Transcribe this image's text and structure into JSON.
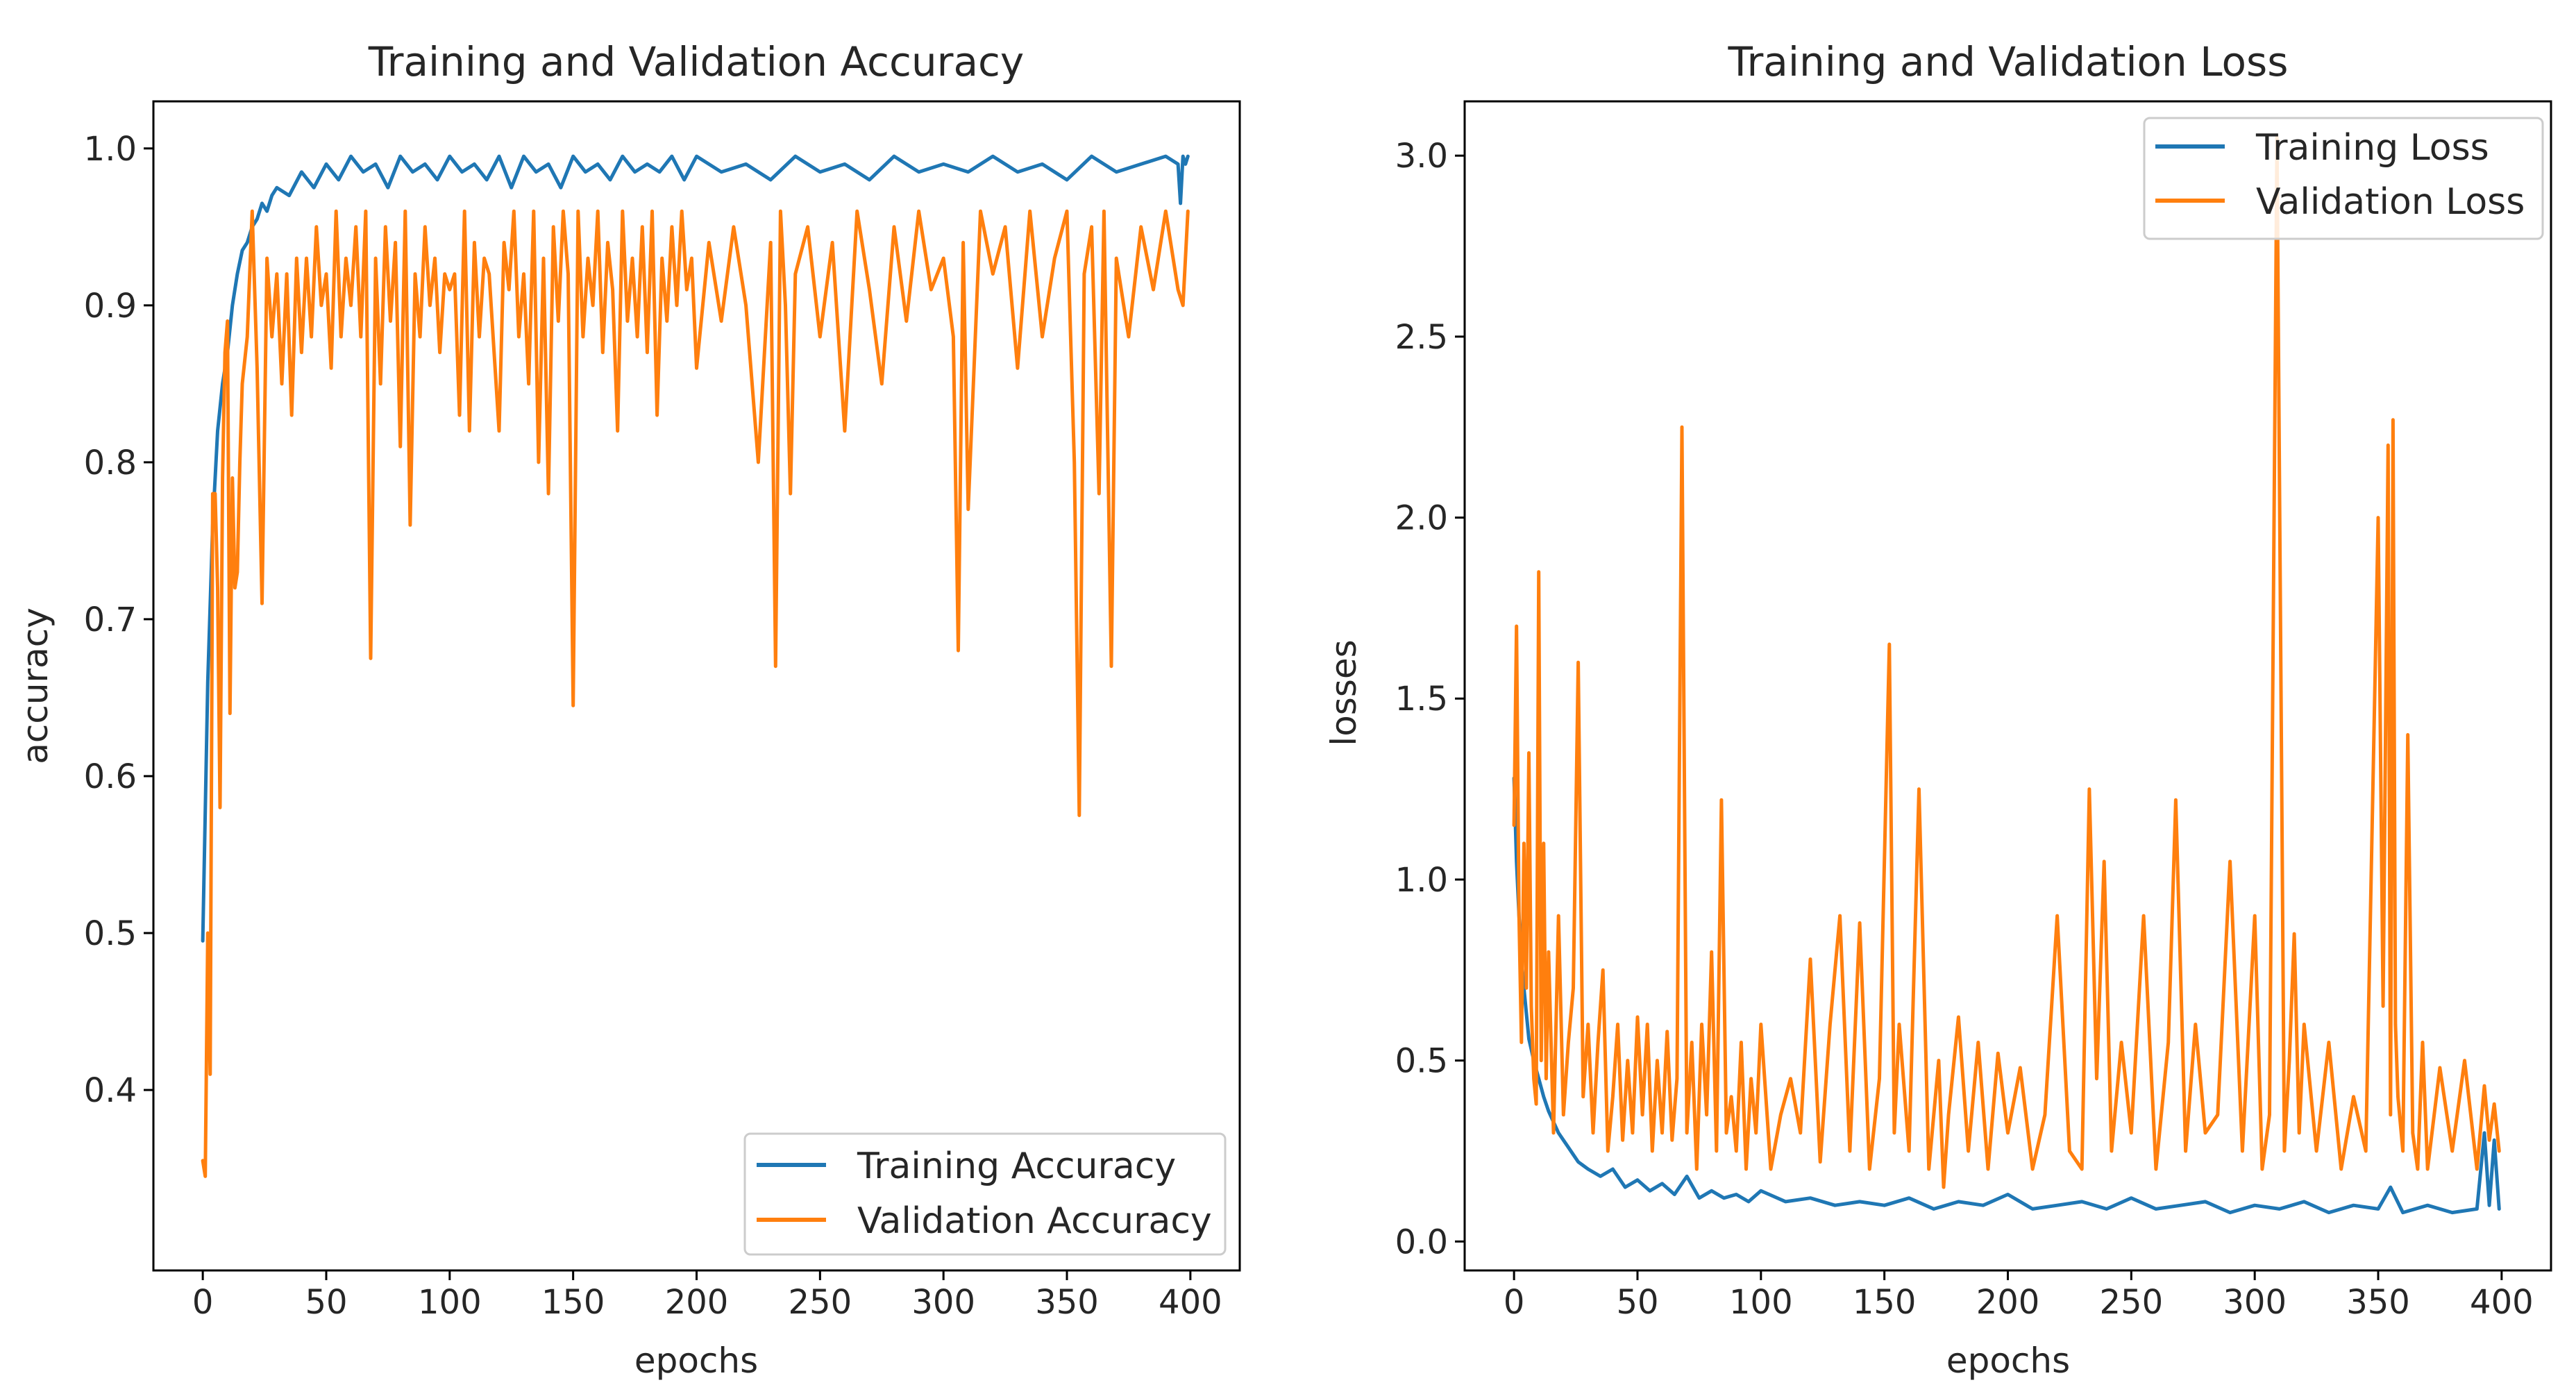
{
  "chart_data": [
    {
      "type": "line",
      "title": "Training and Validation Accuracy",
      "xlabel": "epochs",
      "ylabel": "accuracy",
      "xlim": [
        -20,
        420
      ],
      "ylim": [
        0.285,
        1.03
      ],
      "xticks": [
        0,
        50,
        100,
        150,
        200,
        250,
        300,
        350,
        400
      ],
      "xtick_labels": [
        "0",
        "50",
        "100",
        "150",
        "200",
        "250",
        "300",
        "350",
        "400"
      ],
      "yticks": [
        0.4,
        0.5,
        0.6,
        0.7,
        0.8,
        0.9,
        1.0
      ],
      "ytick_labels": [
        "0.4",
        "0.5",
        "0.6",
        "0.7",
        "0.8",
        "0.9",
        "1.0"
      ],
      "legend_position": "lower-right",
      "series": [
        {
          "name": "Training Accuracy",
          "color": "#1f77b4",
          "x": [
            0,
            2,
            4,
            6,
            8,
            10,
            12,
            14,
            16,
            18,
            20,
            22,
            24,
            26,
            28,
            30,
            35,
            40,
            45,
            50,
            55,
            60,
            65,
            70,
            75,
            80,
            85,
            90,
            95,
            100,
            105,
            110,
            115,
            120,
            125,
            130,
            135,
            140,
            145,
            150,
            155,
            160,
            165,
            170,
            175,
            180,
            185,
            190,
            195,
            200,
            210,
            220,
            230,
            240,
            250,
            260,
            270,
            280,
            290,
            300,
            310,
            320,
            330,
            340,
            350,
            360,
            370,
            380,
            390,
            395,
            396,
            397,
            398,
            399
          ],
          "y": [
            0.495,
            0.66,
            0.76,
            0.82,
            0.85,
            0.87,
            0.9,
            0.92,
            0.935,
            0.94,
            0.95,
            0.955,
            0.965,
            0.96,
            0.97,
            0.975,
            0.97,
            0.985,
            0.975,
            0.99,
            0.98,
            0.995,
            0.985,
            0.99,
            0.975,
            0.995,
            0.985,
            0.99,
            0.98,
            0.995,
            0.985,
            0.99,
            0.98,
            0.995,
            0.975,
            0.995,
            0.985,
            0.99,
            0.975,
            0.995,
            0.985,
            0.99,
            0.98,
            0.995,
            0.985,
            0.99,
            0.985,
            0.995,
            0.98,
            0.995,
            0.985,
            0.99,
            0.98,
            0.995,
            0.985,
            0.99,
            0.98,
            0.995,
            0.985,
            0.99,
            0.985,
            0.995,
            0.985,
            0.99,
            0.98,
            0.995,
            0.985,
            0.99,
            0.995,
            0.99,
            0.965,
            0.995,
            0.99,
            0.995
          ]
        },
        {
          "name": "Validation Accuracy",
          "color": "#ff7f0e",
          "x": [
            0,
            1,
            2,
            3,
            4,
            5,
            6,
            7,
            8,
            9,
            10,
            11,
            12,
            13,
            14,
            15,
            16,
            18,
            20,
            22,
            24,
            26,
            28,
            30,
            32,
            34,
            36,
            38,
            40,
            42,
            44,
            46,
            48,
            50,
            52,
            54,
            56,
            58,
            60,
            62,
            64,
            66,
            68,
            70,
            72,
            74,
            76,
            78,
            80,
            82,
            84,
            86,
            88,
            90,
            92,
            94,
            96,
            98,
            100,
            102,
            104,
            106,
            108,
            110,
            112,
            114,
            116,
            118,
            120,
            122,
            124,
            126,
            128,
            130,
            132,
            134,
            136,
            138,
            140,
            142,
            144,
            146,
            148,
            150,
            152,
            154,
            156,
            158,
            160,
            162,
            164,
            166,
            168,
            170,
            172,
            174,
            176,
            178,
            180,
            182,
            184,
            186,
            188,
            190,
            192,
            194,
            196,
            198,
            200,
            205,
            210,
            215,
            220,
            225,
            230,
            232,
            234,
            236,
            238,
            240,
            245,
            250,
            255,
            260,
            265,
            270,
            275,
            280,
            285,
            290,
            295,
            300,
            304,
            306,
            308,
            310,
            315,
            320,
            325,
            330,
            335,
            340,
            345,
            350,
            353,
            355,
            357,
            360,
            363,
            365,
            368,
            370,
            375,
            380,
            385,
            390,
            393,
            395,
            397,
            399
          ],
          "y": [
            0.355,
            0.345,
            0.5,
            0.41,
            0.78,
            0.78,
            0.72,
            0.58,
            0.79,
            0.87,
            0.89,
            0.64,
            0.79,
            0.72,
            0.73,
            0.8,
            0.85,
            0.88,
            0.96,
            0.86,
            0.71,
            0.93,
            0.88,
            0.92,
            0.85,
            0.92,
            0.83,
            0.93,
            0.87,
            0.93,
            0.88,
            0.95,
            0.9,
            0.92,
            0.86,
            0.96,
            0.88,
            0.93,
            0.9,
            0.95,
            0.88,
            0.96,
            0.675,
            0.93,
            0.85,
            0.95,
            0.89,
            0.94,
            0.81,
            0.96,
            0.76,
            0.92,
            0.88,
            0.95,
            0.9,
            0.93,
            0.87,
            0.92,
            0.91,
            0.92,
            0.83,
            0.96,
            0.82,
            0.94,
            0.88,
            0.93,
            0.92,
            0.87,
            0.82,
            0.94,
            0.91,
            0.96,
            0.88,
            0.92,
            0.85,
            0.96,
            0.8,
            0.93,
            0.78,
            0.95,
            0.89,
            0.96,
            0.92,
            0.645,
            0.96,
            0.88,
            0.93,
            0.9,
            0.96,
            0.87,
            0.94,
            0.91,
            0.82,
            0.96,
            0.89,
            0.93,
            0.88,
            0.95,
            0.87,
            0.96,
            0.83,
            0.93,
            0.89,
            0.95,
            0.9,
            0.96,
            0.91,
            0.93,
            0.86,
            0.94,
            0.89,
            0.95,
            0.9,
            0.8,
            0.94,
            0.67,
            0.96,
            0.9,
            0.78,
            0.92,
            0.95,
            0.88,
            0.94,
            0.82,
            0.96,
            0.91,
            0.85,
            0.95,
            0.89,
            0.96,
            0.91,
            0.93,
            0.88,
            0.68,
            0.94,
            0.77,
            0.96,
            0.92,
            0.95,
            0.86,
            0.96,
            0.88,
            0.93,
            0.96,
            0.8,
            0.575,
            0.92,
            0.95,
            0.78,
            0.96,
            0.67,
            0.93,
            0.88,
            0.95,
            0.91,
            0.96,
            0.93,
            0.91,
            0.9,
            0.96
          ]
        }
      ]
    },
    {
      "type": "line",
      "title": "Training and Validation Loss",
      "xlabel": "epochs",
      "ylabel": "losses",
      "xlim": [
        -20,
        420
      ],
      "ylim": [
        -0.08,
        3.15
      ],
      "xticks": [
        0,
        50,
        100,
        150,
        200,
        250,
        300,
        350,
        400
      ],
      "xtick_labels": [
        "0",
        "50",
        "100",
        "150",
        "200",
        "250",
        "300",
        "350",
        "400"
      ],
      "yticks": [
        0.0,
        0.5,
        1.0,
        1.5,
        2.0,
        2.5,
        3.0
      ],
      "ytick_labels": [
        "0.0",
        "0.5",
        "1.0",
        "1.5",
        "2.0",
        "2.5",
        "3.0"
      ],
      "legend_position": "upper-right",
      "series": [
        {
          "name": "Training Loss",
          "color": "#1f77b4",
          "x": [
            0,
            1,
            2,
            3,
            4,
            5,
            6,
            8,
            10,
            12,
            14,
            16,
            18,
            20,
            22,
            24,
            26,
            28,
            30,
            35,
            40,
            45,
            50,
            55,
            60,
            65,
            70,
            75,
            80,
            85,
            90,
            95,
            100,
            110,
            120,
            130,
            140,
            150,
            160,
            170,
            180,
            190,
            200,
            210,
            220,
            230,
            240,
            250,
            260,
            270,
            280,
            290,
            300,
            310,
            320,
            330,
            340,
            350,
            355,
            360,
            370,
            380,
            390,
            393,
            395,
            397,
            399
          ],
          "y": [
            1.28,
            1.05,
            0.9,
            0.78,
            0.7,
            0.63,
            0.56,
            0.5,
            0.45,
            0.4,
            0.36,
            0.33,
            0.3,
            0.28,
            0.26,
            0.24,
            0.22,
            0.21,
            0.2,
            0.18,
            0.2,
            0.15,
            0.17,
            0.14,
            0.16,
            0.13,
            0.18,
            0.12,
            0.14,
            0.12,
            0.13,
            0.11,
            0.14,
            0.11,
            0.12,
            0.1,
            0.11,
            0.1,
            0.12,
            0.09,
            0.11,
            0.1,
            0.13,
            0.09,
            0.1,
            0.11,
            0.09,
            0.12,
            0.09,
            0.1,
            0.11,
            0.08,
            0.1,
            0.09,
            0.11,
            0.08,
            0.1,
            0.09,
            0.15,
            0.08,
            0.1,
            0.08,
            0.09,
            0.3,
            0.1,
            0.28,
            0.09
          ]
        },
        {
          "name": "Validation Loss",
          "color": "#ff7f0e",
          "x": [
            0,
            1,
            2,
            3,
            4,
            5,
            6,
            7,
            8,
            9,
            10,
            11,
            12,
            13,
            14,
            16,
            18,
            20,
            22,
            24,
            26,
            28,
            30,
            32,
            34,
            36,
            38,
            40,
            42,
            44,
            46,
            48,
            50,
            52,
            54,
            56,
            58,
            60,
            62,
            64,
            66,
            68,
            70,
            72,
            74,
            76,
            78,
            80,
            82,
            84,
            86,
            88,
            90,
            92,
            94,
            96,
            98,
            100,
            104,
            108,
            112,
            116,
            120,
            124,
            128,
            132,
            136,
            140,
            144,
            148,
            152,
            154,
            156,
            160,
            164,
            168,
            172,
            174,
            176,
            180,
            184,
            188,
            192,
            196,
            200,
            205,
            210,
            215,
            220,
            225,
            230,
            233,
            236,
            239,
            242,
            246,
            250,
            255,
            260,
            265,
            268,
            272,
            276,
            280,
            285,
            290,
            295,
            300,
            303,
            306,
            309,
            312,
            314,
            316,
            318,
            320,
            325,
            330,
            335,
            340,
            345,
            350,
            352,
            354,
            355,
            356,
            357,
            358,
            360,
            362,
            364,
            366,
            368,
            370,
            375,
            380,
            385,
            390,
            393,
            395,
            397,
            399
          ],
          "y": [
            1.15,
            1.7,
            0.9,
            0.55,
            1.1,
            0.7,
            1.35,
            0.65,
            0.45,
            0.38,
            1.85,
            0.5,
            1.1,
            0.45,
            0.8,
            0.3,
            0.9,
            0.35,
            0.55,
            0.7,
            1.6,
            0.4,
            0.6,
            0.3,
            0.55,
            0.75,
            0.25,
            0.4,
            0.6,
            0.28,
            0.5,
            0.3,
            0.62,
            0.35,
            0.6,
            0.25,
            0.5,
            0.3,
            0.58,
            0.28,
            0.45,
            2.25,
            0.3,
            0.55,
            0.2,
            0.6,
            0.35,
            0.8,
            0.25,
            1.22,
            0.3,
            0.4,
            0.25,
            0.55,
            0.2,
            0.45,
            0.3,
            0.6,
            0.2,
            0.35,
            0.45,
            0.3,
            0.78,
            0.22,
            0.6,
            0.9,
            0.25,
            0.88,
            0.2,
            0.45,
            1.65,
            0.3,
            0.6,
            0.25,
            1.25,
            0.2,
            0.5,
            0.15,
            0.35,
            0.62,
            0.25,
            0.55,
            0.2,
            0.52,
            0.3,
            0.48,
            0.2,
            0.35,
            0.9,
            0.25,
            0.2,
            1.25,
            0.45,
            1.05,
            0.25,
            0.55,
            0.3,
            0.9,
            0.2,
            0.55,
            1.22,
            0.25,
            0.6,
            0.3,
            0.35,
            1.05,
            0.25,
            0.9,
            0.2,
            0.35,
            3.05,
            0.25,
            0.5,
            0.85,
            0.3,
            0.6,
            0.25,
            0.55,
            0.2,
            0.4,
            0.25,
            2.0,
            0.65,
            2.2,
            0.35,
            2.27,
            0.6,
            0.4,
            0.25,
            1.4,
            0.3,
            0.2,
            0.55,
            0.2,
            0.48,
            0.25,
            0.5,
            0.2,
            0.43,
            0.28,
            0.38,
            0.25
          ]
        }
      ]
    }
  ]
}
